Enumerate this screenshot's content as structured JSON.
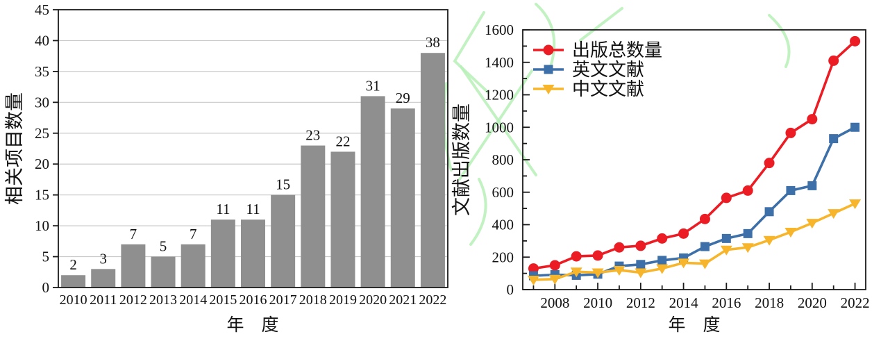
{
  "figure": {
    "background": "#ffffff",
    "text_color": "#111111",
    "axis_color": "#1a1a1a",
    "grid_color": "#c9c9c9",
    "watermark_color": "#b7f0b7"
  },
  "chart_data": [
    {
      "id": "related-projects-bar-chart",
      "type": "bar",
      "title": "",
      "xlabel": "年　度",
      "ylabel": "相关项目数量",
      "categories": [
        "2010",
        "2011",
        "2012",
        "2013",
        "2014",
        "2015",
        "2016",
        "2017",
        "2018",
        "2019",
        "2020",
        "2021",
        "2022"
      ],
      "values": [
        2,
        3,
        7,
        5,
        7,
        11,
        11,
        15,
        23,
        22,
        31,
        29,
        38
      ],
      "bar_labels": [
        "2",
        "3",
        "7",
        "5",
        "7",
        "11",
        "11",
        "15",
        "23",
        "22",
        "31",
        "29",
        "38"
      ],
      "ylim": [
        0,
        45
      ],
      "ytick_step": 5,
      "yticks": [
        "0",
        "5",
        "10",
        "15",
        "20",
        "25",
        "30",
        "35",
        "40",
        "45"
      ],
      "grid": true,
      "bar_color": "#8f8f8f",
      "legend_position": "none"
    },
    {
      "id": "publications-line-chart",
      "type": "line",
      "title": "",
      "xlabel": "年　度",
      "ylabel": "文献出版数量",
      "x": [
        2007,
        2008,
        2009,
        2010,
        2011,
        2012,
        2013,
        2014,
        2015,
        2016,
        2017,
        2018,
        2019,
        2020,
        2021,
        2022
      ],
      "xtick_labeled_years": [
        2008,
        2010,
        2012,
        2014,
        2016,
        2018,
        2020,
        2022
      ],
      "xtick_labels": [
        "2008",
        "2010",
        "2012",
        "2014",
        "2016",
        "2018",
        "2020",
        "2022"
      ],
      "ylim": [
        0,
        1600
      ],
      "ytick_step": 200,
      "yminor_step": 100,
      "yticks": [
        "0",
        "200",
        "400",
        "600",
        "800",
        "1000",
        "1200",
        "1400",
        "1600"
      ],
      "grid": false,
      "legend_position": "top-left",
      "series": [
        {
          "name": "出版总数量",
          "color": "#ec1c24",
          "marker": "circle",
          "values": [
            130,
            150,
            205,
            210,
            260,
            270,
            315,
            345,
            435,
            565,
            610,
            780,
            965,
            1050,
            1410,
            1530
          ]
        },
        {
          "name": "英文文献",
          "color": "#3d6fa8",
          "marker": "square",
          "values": [
            85,
            92,
            88,
            95,
            145,
            155,
            180,
            195,
            265,
            315,
            345,
            480,
            610,
            640,
            930,
            1000
          ]
        },
        {
          "name": "中文文献",
          "color": "#f7b52c",
          "marker": "triangle-down",
          "values": [
            60,
            65,
            110,
            105,
            120,
            105,
            130,
            165,
            160,
            245,
            260,
            305,
            355,
            410,
            470,
            530
          ]
        }
      ]
    }
  ]
}
